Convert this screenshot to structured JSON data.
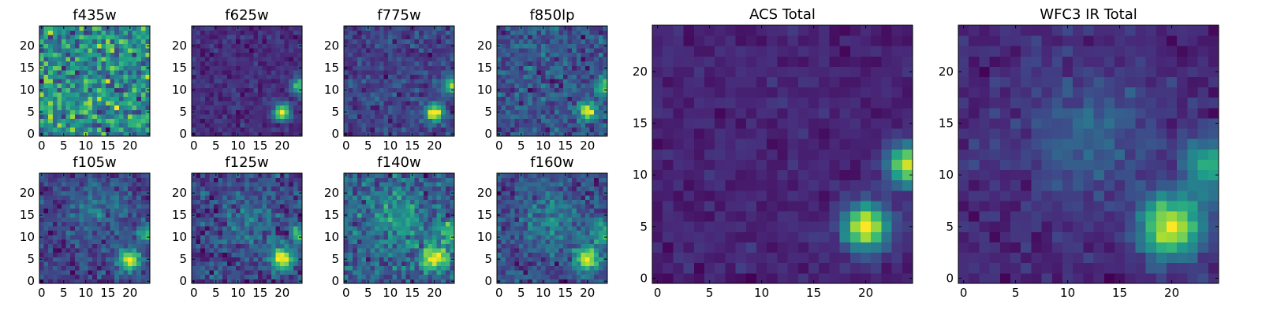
{
  "chart_data": [
    {
      "type": "heatmap",
      "title": "f435w",
      "grid": false,
      "colormap": "viridis",
      "x_ticks": [
        "0",
        "5",
        "10",
        "15",
        "20"
      ],
      "y_ticks": [
        "0",
        "5",
        "10",
        "15",
        "20"
      ],
      "xlim": [
        -0.5,
        24.5
      ],
      "ylim": [
        -0.5,
        24.5
      ],
      "image_size": [
        25,
        25
      ],
      "sources": [],
      "noise": 0.92,
      "seed": 11
    },
    {
      "type": "heatmap",
      "title": "f625w",
      "grid": false,
      "colormap": "viridis",
      "x_ticks": [
        "0",
        "5",
        "10",
        "15",
        "20"
      ],
      "y_ticks": [
        "0",
        "5",
        "10",
        "15",
        "20"
      ],
      "xlim": [
        -0.5,
        24.5
      ],
      "ylim": [
        -0.5,
        24.5
      ],
      "image_size": [
        25,
        25
      ],
      "sources": [
        {
          "x": 20,
          "y": 5,
          "amp": 1.0,
          "sigma": 1.4
        },
        {
          "x": 24,
          "y": 11,
          "amp": 0.8,
          "sigma": 1.3
        }
      ],
      "noise": 0.16,
      "seed": 23
    },
    {
      "type": "heatmap",
      "title": "f775w",
      "grid": false,
      "colormap": "viridis",
      "x_ticks": [
        "0",
        "5",
        "10",
        "15",
        "20"
      ],
      "y_ticks": [
        "0",
        "5",
        "10",
        "15",
        "20"
      ],
      "xlim": [
        -0.5,
        24.5
      ],
      "ylim": [
        -0.5,
        24.5
      ],
      "image_size": [
        25,
        25
      ],
      "sources": [
        {
          "x": 20,
          "y": 5,
          "amp": 1.0,
          "sigma": 1.4
        },
        {
          "x": 24,
          "y": 11,
          "amp": 0.8,
          "sigma": 1.3
        }
      ],
      "noise": 0.22,
      "seed": 37
    },
    {
      "type": "heatmap",
      "title": "f850lp",
      "grid": false,
      "colormap": "viridis",
      "x_ticks": [
        "0",
        "5",
        "10",
        "15",
        "20"
      ],
      "y_ticks": [
        "0",
        "5",
        "10",
        "15",
        "20"
      ],
      "xlim": [
        -0.5,
        24.5
      ],
      "ylim": [
        -0.5,
        24.5
      ],
      "image_size": [
        25,
        25
      ],
      "sources": [
        {
          "x": 20,
          "y": 5,
          "amp": 1.0,
          "sigma": 1.4
        },
        {
          "x": 24,
          "y": 11,
          "amp": 0.8,
          "sigma": 1.3
        }
      ],
      "noise": 0.3,
      "seed": 41
    },
    {
      "type": "heatmap",
      "title": "f105w",
      "grid": false,
      "colormap": "viridis",
      "x_ticks": [
        "0",
        "5",
        "10",
        "15",
        "20"
      ],
      "y_ticks": [
        "0",
        "5",
        "10",
        "15",
        "20"
      ],
      "xlim": [
        -0.5,
        24.5
      ],
      "ylim": [
        -0.5,
        24.5
      ],
      "image_size": [
        25,
        25
      ],
      "sources": [
        {
          "x": 20,
          "y": 5,
          "amp": 1.0,
          "sigma": 1.8
        },
        {
          "x": 24,
          "y": 11,
          "amp": 0.6,
          "sigma": 1.6
        },
        {
          "x": 12,
          "y": 16,
          "amp": 0.25,
          "sigma": 4.0
        }
      ],
      "noise": 0.3,
      "seed": 53
    },
    {
      "type": "heatmap",
      "title": "f125w",
      "grid": false,
      "colormap": "viridis",
      "x_ticks": [
        "0",
        "5",
        "10",
        "15",
        "20"
      ],
      "y_ticks": [
        "0",
        "5",
        "10",
        "15",
        "20"
      ],
      "xlim": [
        -0.5,
        24.5
      ],
      "ylim": [
        -0.5,
        24.5
      ],
      "image_size": [
        25,
        25
      ],
      "sources": [
        {
          "x": 20,
          "y": 5,
          "amp": 1.0,
          "sigma": 1.8
        },
        {
          "x": 24,
          "y": 11,
          "amp": 0.6,
          "sigma": 1.6
        },
        {
          "x": 12,
          "y": 14,
          "amp": 0.25,
          "sigma": 4.0
        }
      ],
      "noise": 0.3,
      "seed": 67
    },
    {
      "type": "heatmap",
      "title": "f140w",
      "grid": false,
      "colormap": "viridis",
      "x_ticks": [
        "0",
        "5",
        "10",
        "15",
        "20"
      ],
      "y_ticks": [
        "0",
        "5",
        "10",
        "15",
        "20"
      ],
      "xlim": [
        -0.5,
        24.5
      ],
      "ylim": [
        -0.5,
        24.5
      ],
      "image_size": [
        25,
        25
      ],
      "sources": [
        {
          "x": 20,
          "y": 5,
          "amp": 1.0,
          "sigma": 2.0
        },
        {
          "x": 24,
          "y": 11,
          "amp": 0.6,
          "sigma": 1.8
        },
        {
          "x": 12,
          "y": 14,
          "amp": 0.3,
          "sigma": 4.5
        }
      ],
      "noise": 0.4,
      "seed": 79
    },
    {
      "type": "heatmap",
      "title": "f160w",
      "grid": false,
      "colormap": "viridis",
      "x_ticks": [
        "0",
        "5",
        "10",
        "15",
        "20"
      ],
      "y_ticks": [
        "0",
        "5",
        "10",
        "15",
        "20"
      ],
      "xlim": [
        -0.5,
        24.5
      ],
      "ylim": [
        -0.5,
        24.5
      ],
      "image_size": [
        25,
        25
      ],
      "sources": [
        {
          "x": 20,
          "y": 5,
          "amp": 1.0,
          "sigma": 2.0
        },
        {
          "x": 24,
          "y": 11,
          "amp": 0.65,
          "sigma": 1.8
        },
        {
          "x": 12,
          "y": 14,
          "amp": 0.3,
          "sigma": 4.5
        }
      ],
      "noise": 0.34,
      "seed": 83
    },
    {
      "type": "heatmap",
      "title": "ACS Total",
      "grid": false,
      "colormap": "viridis",
      "x_ticks": [
        "0",
        "5",
        "10",
        "15",
        "20"
      ],
      "y_ticks": [
        "0",
        "5",
        "10",
        "15",
        "20"
      ],
      "xlim": [
        -0.5,
        24.5
      ],
      "ylim": [
        -0.5,
        24.5
      ],
      "image_size": [
        25,
        25
      ],
      "sources": [
        {
          "x": 20,
          "y": 5,
          "amp": 1.0,
          "sigma": 1.5
        },
        {
          "x": 24,
          "y": 11,
          "amp": 0.85,
          "sigma": 1.4
        }
      ],
      "noise": 0.09,
      "seed": 97
    },
    {
      "type": "heatmap",
      "title": "WFC3 IR Total",
      "grid": false,
      "colormap": "viridis",
      "x_ticks": [
        "0",
        "5",
        "10",
        "15",
        "20"
      ],
      "y_ticks": [
        "0",
        "5",
        "10",
        "15",
        "20"
      ],
      "xlim": [
        -0.5,
        24.5
      ],
      "ylim": [
        -0.5,
        24.5
      ],
      "image_size": [
        25,
        25
      ],
      "sources": [
        {
          "x": 20,
          "y": 5,
          "amp": 1.0,
          "sigma": 2.1
        },
        {
          "x": 24,
          "y": 11,
          "amp": 0.65,
          "sigma": 1.9
        },
        {
          "x": 12,
          "y": 14,
          "amp": 0.25,
          "sigma": 4.5
        }
      ],
      "noise": 0.13,
      "seed": 101
    }
  ],
  "colors": {
    "viridis_stops": [
      "#440154",
      "#482878",
      "#3e4989",
      "#31688e",
      "#26828e",
      "#1f9e89",
      "#35b779",
      "#6ece58",
      "#b5de2b",
      "#fde725"
    ],
    "axis": "#000000",
    "background": "#ffffff"
  }
}
